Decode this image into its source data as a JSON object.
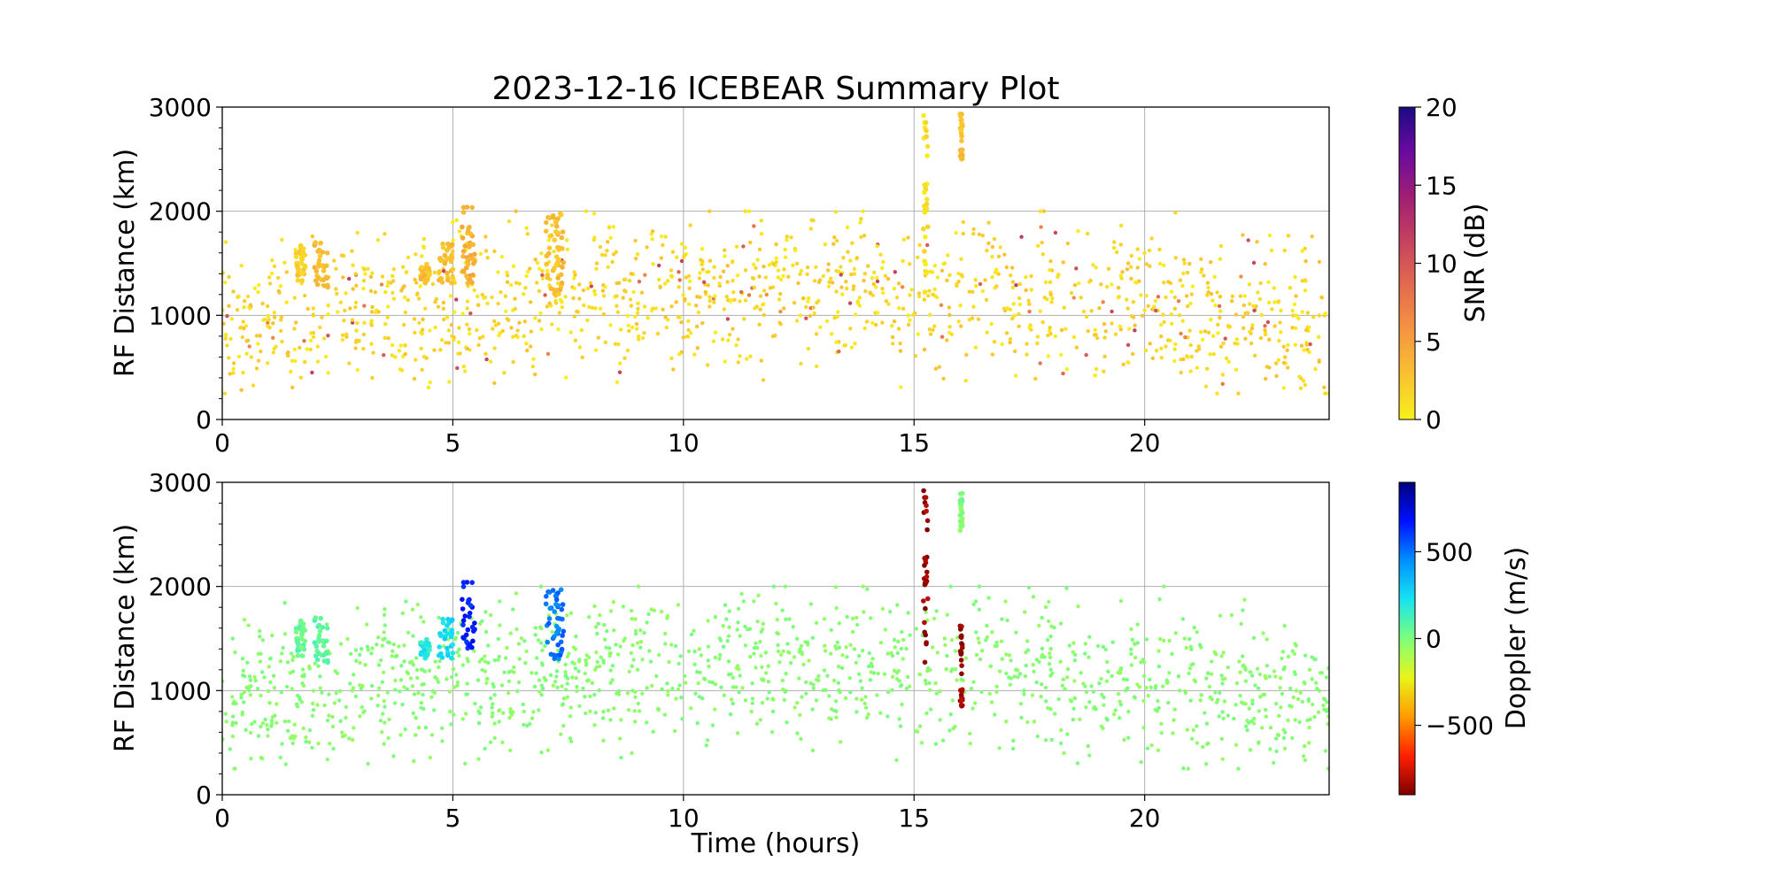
{
  "title": "2023-12-16 ICEBEAR Summary Plot",
  "chart_data": [
    {
      "type": "scatter",
      "panel": "top",
      "ylabel": "RF Distance (km)",
      "xlabel": "",
      "xlim": [
        0,
        24
      ],
      "ylim": [
        0,
        3000
      ],
      "x_ticks": [
        0,
        5,
        10,
        15,
        20
      ],
      "y_ticks": [
        0,
        1000,
        2000,
        3000
      ],
      "grid": true,
      "color_variable": "SNR (dB)",
      "colorbar": {
        "label": "SNR (dB)",
        "range": [
          0,
          20
        ],
        "ticks": [
          0,
          5,
          10,
          15,
          20
        ],
        "colormap": [
          "#f7f01b",
          "#f9c231",
          "#f59541",
          "#e36b4f",
          "#c5425f",
          "#9e1f73",
          "#6a0aa0",
          "#1c0a82"
        ]
      },
      "background_scatter": {
        "time_range_hours": [
          0,
          24
        ],
        "range_km": [
          250,
          2000
        ],
        "typical_snr_db": 1.5,
        "dominant_color": "#f4b43a"
      },
      "features": [
        {
          "time_hours": [
            1.6,
            1.8
          ],
          "range_km": [
            1300,
            1700
          ],
          "snr_db": 2
        },
        {
          "time_hours": [
            2.0,
            2.3
          ],
          "range_km": [
            1250,
            1700
          ],
          "snr_db": 3
        },
        {
          "time_hours": [
            4.3,
            4.5
          ],
          "range_km": [
            1300,
            1500
          ],
          "snr_db": 3
        },
        {
          "time_hours": [
            4.7,
            5.0
          ],
          "range_km": [
            1300,
            1700
          ],
          "snr_db": 3
        },
        {
          "time_hours": [
            5.2,
            5.5
          ],
          "range_km": [
            1300,
            2050
          ],
          "snr_db": 4
        },
        {
          "time_hours": [
            7.0,
            7.4
          ],
          "range_km": [
            1200,
            2000
          ],
          "snr_db": 3
        },
        {
          "time_hours": [
            15.2,
            15.3
          ],
          "range_km": [
            1200,
            2950
          ],
          "snr_db": 1
        },
        {
          "time_hours": [
            16.0,
            16.05
          ],
          "range_km": [
            2500,
            2950
          ],
          "snr_db": 3
        }
      ]
    },
    {
      "type": "scatter",
      "panel": "bottom",
      "ylabel": "RF Distance (km)",
      "xlabel": "Time (hours)",
      "xlim": [
        0,
        24
      ],
      "ylim": [
        0,
        3000
      ],
      "x_ticks": [
        0,
        5,
        10,
        15,
        20
      ],
      "y_ticks": [
        0,
        1000,
        2000,
        3000
      ],
      "grid": true,
      "color_variable": "Doppler (m/s)",
      "colorbar": {
        "label": "Doppler (m/s)",
        "range": [
          -900,
          900
        ],
        "ticks": [
          -500,
          0,
          500
        ],
        "colormap": [
          "#7f0000",
          "#ff2000",
          "#ff9b00",
          "#e8f51a",
          "#7eff7a",
          "#18e4f0",
          "#0090ff",
          "#0010ff",
          "#00007f"
        ]
      },
      "background_scatter": {
        "time_range_hours": [
          0,
          24
        ],
        "range_km": [
          250,
          2000
        ],
        "typical_doppler_ms": -20,
        "dominant_color": "#7eff5a"
      },
      "features": [
        {
          "time_hours": [
            1.6,
            1.8
          ],
          "range_km": [
            1300,
            1700
          ],
          "doppler_ms": 50
        },
        {
          "time_hours": [
            2.0,
            2.3
          ],
          "range_km": [
            1250,
            1700
          ],
          "doppler_ms": 60
        },
        {
          "time_hours": [
            4.3,
            4.5
          ],
          "range_km": [
            1300,
            1500
          ],
          "doppler_ms": 200
        },
        {
          "time_hours": [
            4.7,
            5.0
          ],
          "range_km": [
            1300,
            1700
          ],
          "doppler_ms": 250
        },
        {
          "time_hours": [
            5.2,
            5.5
          ],
          "range_km": [
            1400,
            2050
          ],
          "doppler_ms": 650
        },
        {
          "time_hours": [
            7.0,
            7.4
          ],
          "range_km": [
            1300,
            2000
          ],
          "doppler_ms": 500
        },
        {
          "time_hours": [
            15.2,
            15.3
          ],
          "range_km": [
            1250,
            2950
          ],
          "doppler_ms": -850
        },
        {
          "time_hours": [
            16.0,
            16.05
          ],
          "range_km": [
            850,
            1650
          ],
          "doppler_ms": -850
        },
        {
          "time_hours": [
            16.0,
            16.05
          ],
          "range_km": [
            2500,
            2950
          ],
          "doppler_ms": 0
        }
      ]
    }
  ]
}
